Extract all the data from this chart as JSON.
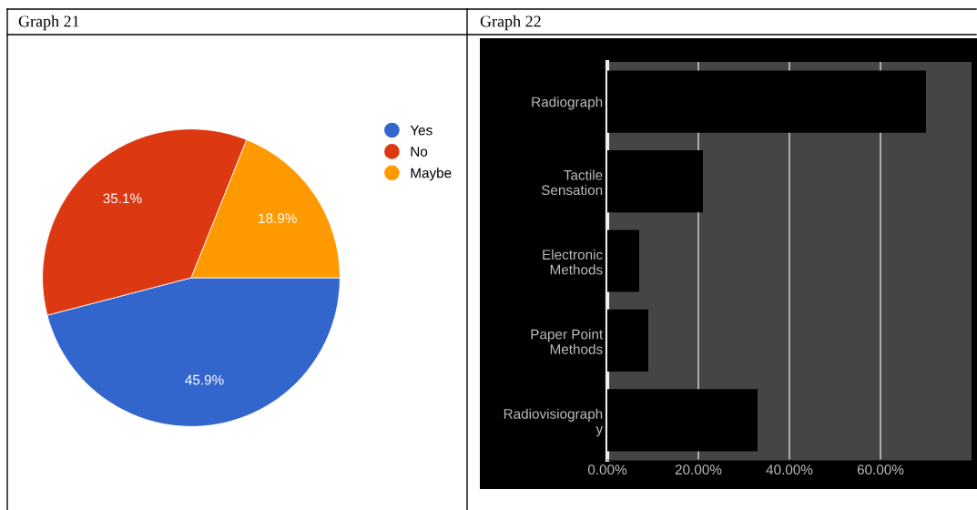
{
  "chart_data": [
    {
      "type": "pie",
      "title": "Graph 21",
      "categories": [
        "Yes",
        "No",
        "Maybe"
      ],
      "values": [
        45.9,
        35.1,
        18.9
      ],
      "colors": [
        "#3366cc",
        "#dc3912",
        "#ff9900"
      ],
      "value_labels": [
        "45.9%",
        "35.1%",
        "18.9%"
      ],
      "legend": "top right"
    },
    {
      "type": "bar",
      "title": "Graph 22",
      "orientation": "horizontal",
      "categories": [
        "Radiograph",
        "Tactile\nSensation",
        "Electronic\nMethods",
        "Paper Point\nMethods",
        "Radiovisiograph\ny"
      ],
      "values": [
        70,
        21,
        7,
        9,
        33
      ],
      "color": "#000000",
      "xlim": [
        0,
        80
      ],
      "xticks": [
        {
          "value": 0,
          "label": "0.00%"
        },
        {
          "value": 20,
          "label": "20.00%"
        },
        {
          "value": 40,
          "label": "40.00%"
        },
        {
          "value": 60,
          "label": "60.00%"
        }
      ],
      "grid": "x"
    }
  ]
}
